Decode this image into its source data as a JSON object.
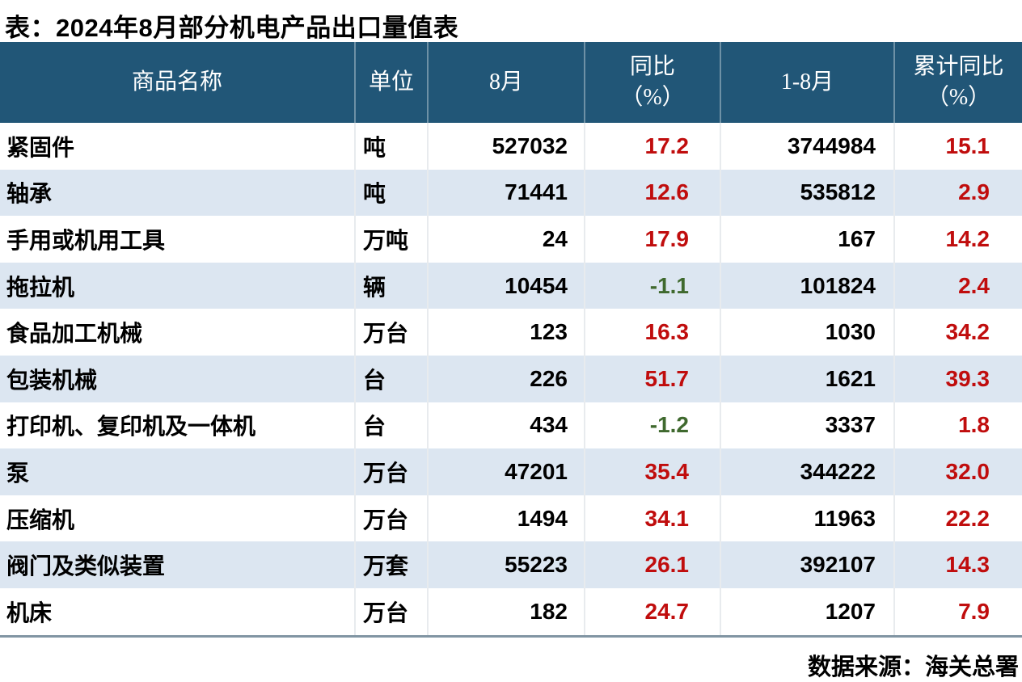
{
  "title": "表：2024年8月部分机电产品出口量值表",
  "source": "数据来源：海关总署",
  "colors": {
    "header_bg": "#215677",
    "row_alt": "#DCE6F1",
    "positive_red": "#C00D0D",
    "negative_green": "#3F692E"
  },
  "table": {
    "columns": [
      {
        "label": "商品名称",
        "sub": ""
      },
      {
        "label": "单位",
        "sub": ""
      },
      {
        "label": "8月",
        "sub": ""
      },
      {
        "label": "同比",
        "sub": "（%）"
      },
      {
        "label": "1-8月",
        "sub": ""
      },
      {
        "label": "累计同比",
        "sub": "（%）"
      }
    ],
    "rows": [
      {
        "name": "紧固件",
        "unit": "吨",
        "aug": "527032",
        "yoy": "17.2",
        "jan_aug": "3744984",
        "cum_yoy": "15.1"
      },
      {
        "name": "轴承",
        "unit": "吨",
        "aug": "71441",
        "yoy": "12.6",
        "jan_aug": "535812",
        "cum_yoy": "2.9"
      },
      {
        "name": "手用或机用工具",
        "unit": "万吨",
        "aug": "24",
        "yoy": "17.9",
        "jan_aug": "167",
        "cum_yoy": "14.2"
      },
      {
        "name": "拖拉机",
        "unit": "辆",
        "aug": "10454",
        "yoy": "-1.1",
        "jan_aug": "101824",
        "cum_yoy": "2.4"
      },
      {
        "name": "食品加工机械",
        "unit": "万台",
        "aug": "123",
        "yoy": "16.3",
        "jan_aug": "1030",
        "cum_yoy": "34.2"
      },
      {
        "name": "包装机械",
        "unit": "台",
        "aug": "226",
        "yoy": "51.7",
        "jan_aug": "1621",
        "cum_yoy": "39.3"
      },
      {
        "name": "打印机、复印机及一体机",
        "unit": "台",
        "aug": "434",
        "yoy": "-1.2",
        "jan_aug": "3337",
        "cum_yoy": "1.8"
      },
      {
        "name": "泵",
        "unit": "万台",
        "aug": "47201",
        "yoy": "35.4",
        "jan_aug": "344222",
        "cum_yoy": "32.0"
      },
      {
        "name": "压缩机",
        "unit": "万台",
        "aug": "1494",
        "yoy": "34.1",
        "jan_aug": "11963",
        "cum_yoy": "22.2"
      },
      {
        "name": "阀门及类似装置",
        "unit": "万套",
        "aug": "55223",
        "yoy": "26.1",
        "jan_aug": "392107",
        "cum_yoy": "14.3"
      },
      {
        "name": "机床",
        "unit": "万台",
        "aug": "182",
        "yoy": "24.7",
        "jan_aug": "1207",
        "cum_yoy": "7.9"
      }
    ]
  },
  "chart_data": {
    "type": "table",
    "title": "表：2024年8月部分机电产品出口量值表",
    "source_note": "数据来源：海关总署",
    "columns": [
      "商品名称",
      "单位",
      "8月",
      "同比（%）",
      "1-8月",
      "累计同比（%）"
    ],
    "rows": [
      [
        "紧固件",
        "吨",
        527032,
        17.2,
        3744984,
        15.1
      ],
      [
        "轴承",
        "吨",
        71441,
        12.6,
        535812,
        2.9
      ],
      [
        "手用或机用工具",
        "万吨",
        24,
        17.9,
        167,
        14.2
      ],
      [
        "拖拉机",
        "辆",
        10454,
        -1.1,
        101824,
        2.4
      ],
      [
        "食品加工机械",
        "万台",
        123,
        16.3,
        1030,
        34.2
      ],
      [
        "包装机械",
        "台",
        226,
        51.7,
        1621,
        39.3
      ],
      [
        "打印机、复印机及一体机",
        "台",
        434,
        -1.2,
        3337,
        1.8
      ],
      [
        "泵",
        "万台",
        47201,
        35.4,
        344222,
        32.0
      ],
      [
        "压缩机",
        "万台",
        1494,
        34.1,
        11963,
        22.2
      ],
      [
        "阀门及类似装置",
        "万套",
        55223,
        26.1,
        392107,
        14.3
      ],
      [
        "机床",
        "万台",
        182,
        24.7,
        1207,
        7.9
      ]
    ],
    "style_notes": {
      "positive_values_color": "#C00D0D",
      "negative_values_color": "#3F692E",
      "header_background": "#215677",
      "alternating_row_background": "#DCE6F1"
    }
  }
}
